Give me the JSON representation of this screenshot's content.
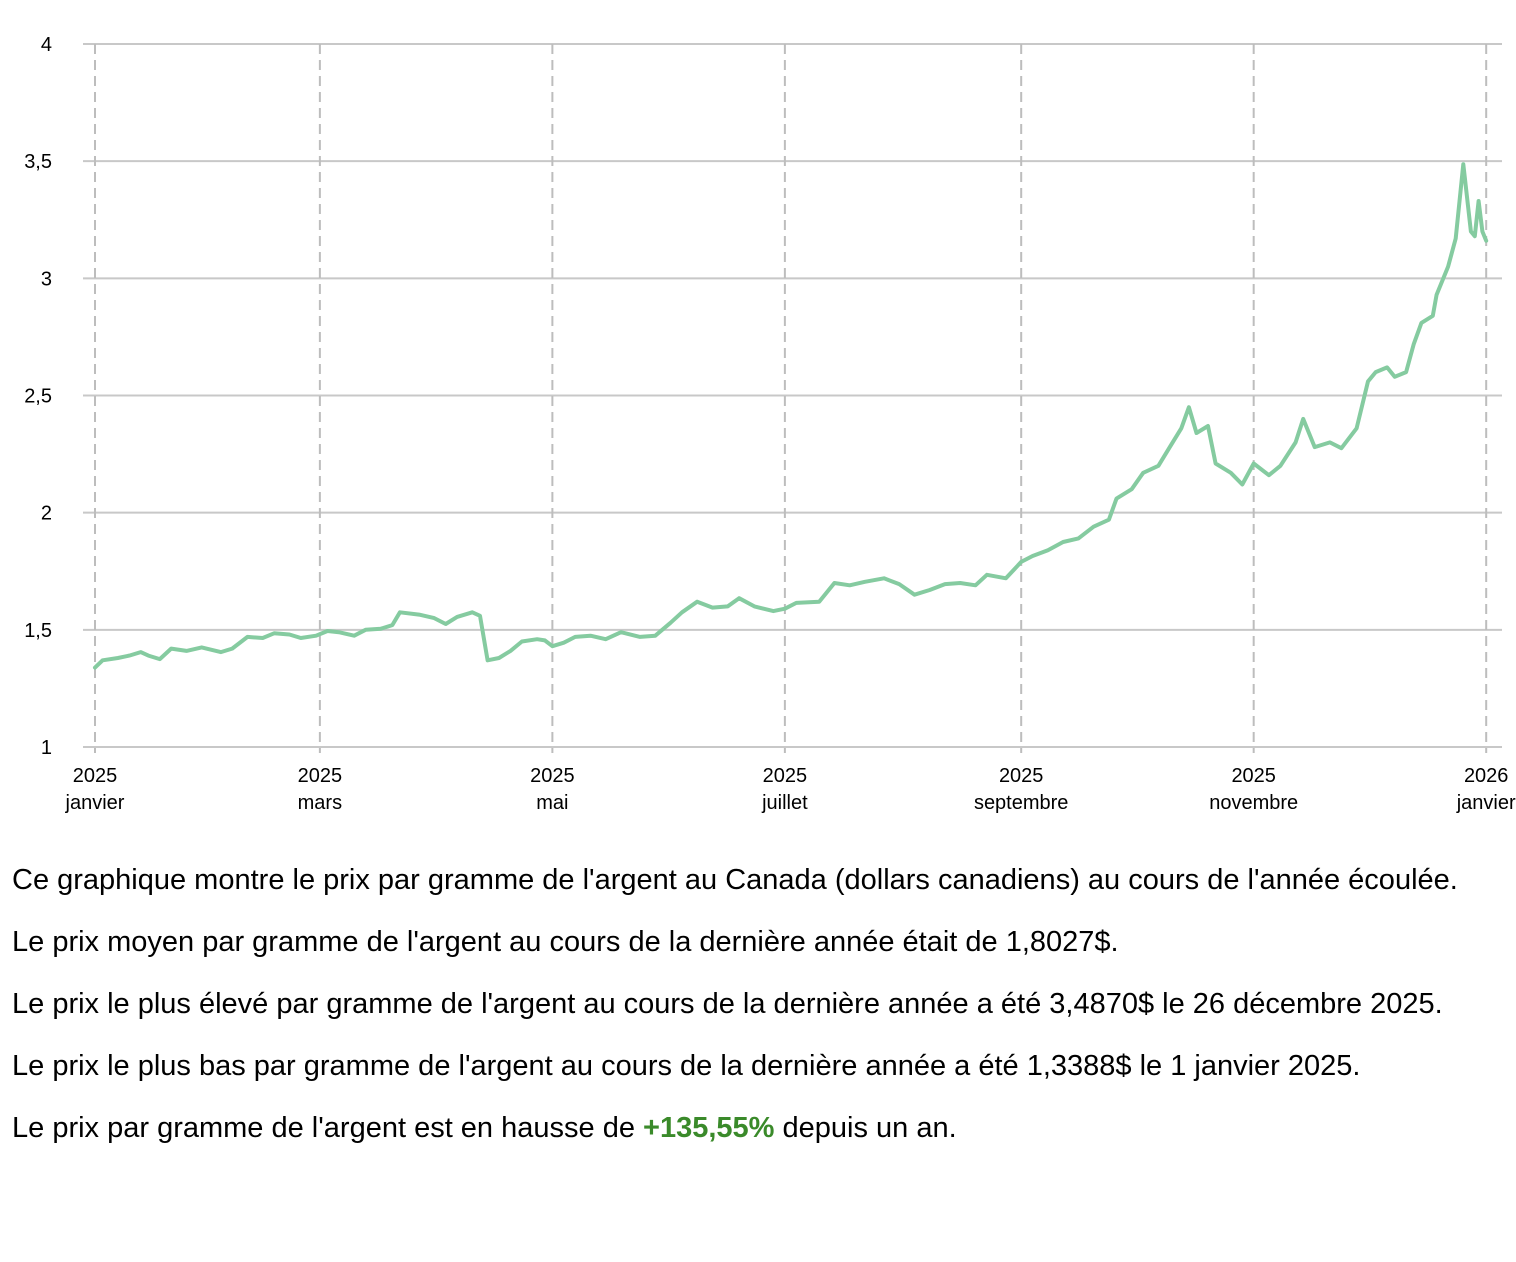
{
  "chart_data": {
    "type": "line",
    "title": "",
    "xlabel": "",
    "ylabel": "",
    "ylim": [
      1,
      4
    ],
    "yticks": [
      {
        "value": 1,
        "label": "1"
      },
      {
        "value": 1.5,
        "label": "1,5"
      },
      {
        "value": 2,
        "label": "2"
      },
      {
        "value": 2.5,
        "label": "2,5"
      },
      {
        "value": 3,
        "label": "3"
      },
      {
        "value": 3.5,
        "label": "3,5"
      },
      {
        "value": 4,
        "label": "4"
      }
    ],
    "xlim": [
      "2025-01-01",
      "2026-01-02"
    ],
    "xticks": [
      {
        "date": "2025-01-01",
        "year": "2025",
        "month": "janvier"
      },
      {
        "date": "2025-03-01",
        "year": "2025",
        "month": "mars"
      },
      {
        "date": "2025-05-01",
        "year": "2025",
        "month": "mai"
      },
      {
        "date": "2025-07-01",
        "year": "2025",
        "month": "juillet"
      },
      {
        "date": "2025-09-01",
        "year": "2025",
        "month": "septembre"
      },
      {
        "date": "2025-11-01",
        "year": "2025",
        "month": "novembre"
      },
      {
        "date": "2026-01-01",
        "year": "2026",
        "month": "janvier"
      }
    ],
    "grid": true,
    "series": [
      {
        "color": "#85cba0",
        "points": [
          [
            "2025-01-01",
            1.339
          ],
          [
            "2025-01-03",
            1.37
          ],
          [
            "2025-01-07",
            1.38
          ],
          [
            "2025-01-10",
            1.39
          ],
          [
            "2025-01-13",
            1.405
          ],
          [
            "2025-01-15",
            1.39
          ],
          [
            "2025-01-18",
            1.375
          ],
          [
            "2025-01-21",
            1.42
          ],
          [
            "2025-01-25",
            1.41
          ],
          [
            "2025-01-29",
            1.425
          ],
          [
            "2025-02-03",
            1.405
          ],
          [
            "2025-02-06",
            1.42
          ],
          [
            "2025-02-10",
            1.47
          ],
          [
            "2025-02-14",
            1.465
          ],
          [
            "2025-02-17",
            1.485
          ],
          [
            "2025-02-21",
            1.48
          ],
          [
            "2025-02-24",
            1.465
          ],
          [
            "2025-02-28",
            1.475
          ],
          [
            "2025-03-03",
            1.495
          ],
          [
            "2025-03-06",
            1.49
          ],
          [
            "2025-03-10",
            1.475
          ],
          [
            "2025-03-13",
            1.5
          ],
          [
            "2025-03-17",
            1.505
          ],
          [
            "2025-03-20",
            1.52
          ],
          [
            "2025-03-22",
            1.575
          ],
          [
            "2025-03-27",
            1.565
          ],
          [
            "2025-03-31",
            1.55
          ],
          [
            "2025-04-03",
            1.525
          ],
          [
            "2025-04-06",
            1.555
          ],
          [
            "2025-04-10",
            1.575
          ],
          [
            "2025-04-12",
            1.56
          ],
          [
            "2025-04-14",
            1.37
          ],
          [
            "2025-04-17",
            1.38
          ],
          [
            "2025-04-20",
            1.41
          ],
          [
            "2025-04-23",
            1.45
          ],
          [
            "2025-04-27",
            1.46
          ],
          [
            "2025-04-29",
            1.455
          ],
          [
            "2025-05-01",
            1.43
          ],
          [
            "2025-05-04",
            1.445
          ],
          [
            "2025-05-07",
            1.47
          ],
          [
            "2025-05-11",
            1.475
          ],
          [
            "2025-05-15",
            1.46
          ],
          [
            "2025-05-19",
            1.49
          ],
          [
            "2025-05-24",
            1.47
          ],
          [
            "2025-05-28",
            1.475
          ],
          [
            "2025-06-01",
            1.53
          ],
          [
            "2025-06-04",
            1.575
          ],
          [
            "2025-06-08",
            1.62
          ],
          [
            "2025-06-12",
            1.595
          ],
          [
            "2025-06-16",
            1.6
          ],
          [
            "2025-06-19",
            1.635
          ],
          [
            "2025-06-23",
            1.6
          ],
          [
            "2025-06-28",
            1.58
          ],
          [
            "2025-07-01",
            1.59
          ],
          [
            "2025-07-04",
            1.615
          ],
          [
            "2025-07-10",
            1.62
          ],
          [
            "2025-07-14",
            1.7
          ],
          [
            "2025-07-18",
            1.69
          ],
          [
            "2025-07-22",
            1.705
          ],
          [
            "2025-07-27",
            1.72
          ],
          [
            "2025-07-31",
            1.695
          ],
          [
            "2025-08-04",
            1.65
          ],
          [
            "2025-08-08",
            1.67
          ],
          [
            "2025-08-12",
            1.695
          ],
          [
            "2025-08-16",
            1.7
          ],
          [
            "2025-08-20",
            1.69
          ],
          [
            "2025-08-23",
            1.735
          ],
          [
            "2025-08-28",
            1.72
          ],
          [
            "2025-09-01",
            1.79
          ],
          [
            "2025-09-04",
            1.815
          ],
          [
            "2025-09-08",
            1.84
          ],
          [
            "2025-09-12",
            1.875
          ],
          [
            "2025-09-16",
            1.89
          ],
          [
            "2025-09-20",
            1.94
          ],
          [
            "2025-09-24",
            1.97
          ],
          [
            "2025-09-26",
            2.06
          ],
          [
            "2025-09-30",
            2.1
          ],
          [
            "2025-10-03",
            2.17
          ],
          [
            "2025-10-07",
            2.2
          ],
          [
            "2025-10-10",
            2.28
          ],
          [
            "2025-10-13",
            2.36
          ],
          [
            "2025-10-15",
            2.45
          ],
          [
            "2025-10-17",
            2.34
          ],
          [
            "2025-10-20",
            2.37
          ],
          [
            "2025-10-22",
            2.21
          ],
          [
            "2025-10-26",
            2.17
          ],
          [
            "2025-10-29",
            2.12
          ],
          [
            "2025-11-01",
            2.21
          ],
          [
            "2025-11-05",
            2.16
          ],
          [
            "2025-11-08",
            2.2
          ],
          [
            "2025-11-12",
            2.3
          ],
          [
            "2025-11-14",
            2.4
          ],
          [
            "2025-11-17",
            2.28
          ],
          [
            "2025-11-21",
            2.3
          ],
          [
            "2025-11-24",
            2.275
          ],
          [
            "2025-11-28",
            2.36
          ],
          [
            "2025-12-01",
            2.56
          ],
          [
            "2025-12-03",
            2.6
          ],
          [
            "2025-12-06",
            2.62
          ],
          [
            "2025-12-08",
            2.58
          ],
          [
            "2025-12-11",
            2.6
          ],
          [
            "2025-12-13",
            2.72
          ],
          [
            "2025-12-15",
            2.81
          ],
          [
            "2025-12-18",
            2.84
          ],
          [
            "2025-12-19",
            2.93
          ],
          [
            "2025-12-22",
            3.05
          ],
          [
            "2025-12-24",
            3.17
          ],
          [
            "2025-12-26",
            3.487
          ],
          [
            "2025-12-28",
            3.2
          ],
          [
            "2025-12-29",
            3.18
          ],
          [
            "2025-12-30",
            3.33
          ],
          [
            "2025-12-31",
            3.2
          ],
          [
            "2026-01-01",
            3.16
          ]
        ]
      }
    ]
  },
  "description": {
    "p1": "Ce graphique montre le prix par gramme de l'argent au Canada (dollars canadiens) au cours de l'année écoulée.",
    "p2": "Le prix moyen par gramme de l'argent au cours de la dernière année était de 1,8027$.",
    "p3": "Le prix le plus élevé par gramme de l'argent au cours de la dernière année a été 3,4870$ le 26 décembre 2025.",
    "p4": "Le prix le plus bas par gramme de l'argent au cours de la dernière année a été 1,3388$ le 1 janvier 2025.",
    "p5_before": "Le prix par gramme de l'argent est en hausse de ",
    "p5_change": "+135,55%",
    "p5_after": " depuis un an.",
    "change_color": "#3a8a2a"
  }
}
